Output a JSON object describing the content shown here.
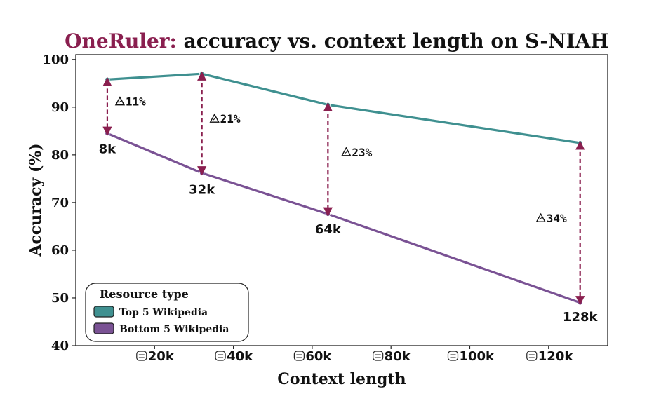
{
  "chart_data": {
    "type": "line",
    "title_brand": "OneRuler:",
    "title_rest": " accuracy vs. context length on S-NIAH",
    "xlabel": "Context length",
    "ylabel": "Accuracy (%)",
    "xlim": [
      0,
      135000
    ],
    "ylim": [
      40,
      101
    ],
    "x_ticks": [
      {
        "value": 20000,
        "label": "20k"
      },
      {
        "value": 40000,
        "label": "40k"
      },
      {
        "value": 60000,
        "label": "60k"
      },
      {
        "value": 80000,
        "label": "80k"
      },
      {
        "value": 100000,
        "label": "100k"
      },
      {
        "value": 120000,
        "label": "120k"
      }
    ],
    "y_ticks": [
      40,
      50,
      60,
      70,
      80,
      90,
      100
    ],
    "x": [
      8000,
      32000,
      64000,
      128000
    ],
    "point_labels": [
      "8k",
      "32k",
      "64k",
      "128k"
    ],
    "series": [
      {
        "name": "Top 5 Wikipedia",
        "color": "#3f9090",
        "values": [
          95.8,
          97.0,
          90.5,
          82.5
        ]
      },
      {
        "name": "Bottom 5 Wikipedia",
        "color": "#7a5294",
        "values": [
          84.5,
          76.2,
          67.6,
          49.0
        ]
      }
    ],
    "deltas": [
      "11%",
      "21%",
      "23%",
      "34%"
    ],
    "delta_color": "#8a1f4f",
    "legend": {
      "title": "Resource type",
      "placement": "lower-left"
    },
    "grid": false
  }
}
